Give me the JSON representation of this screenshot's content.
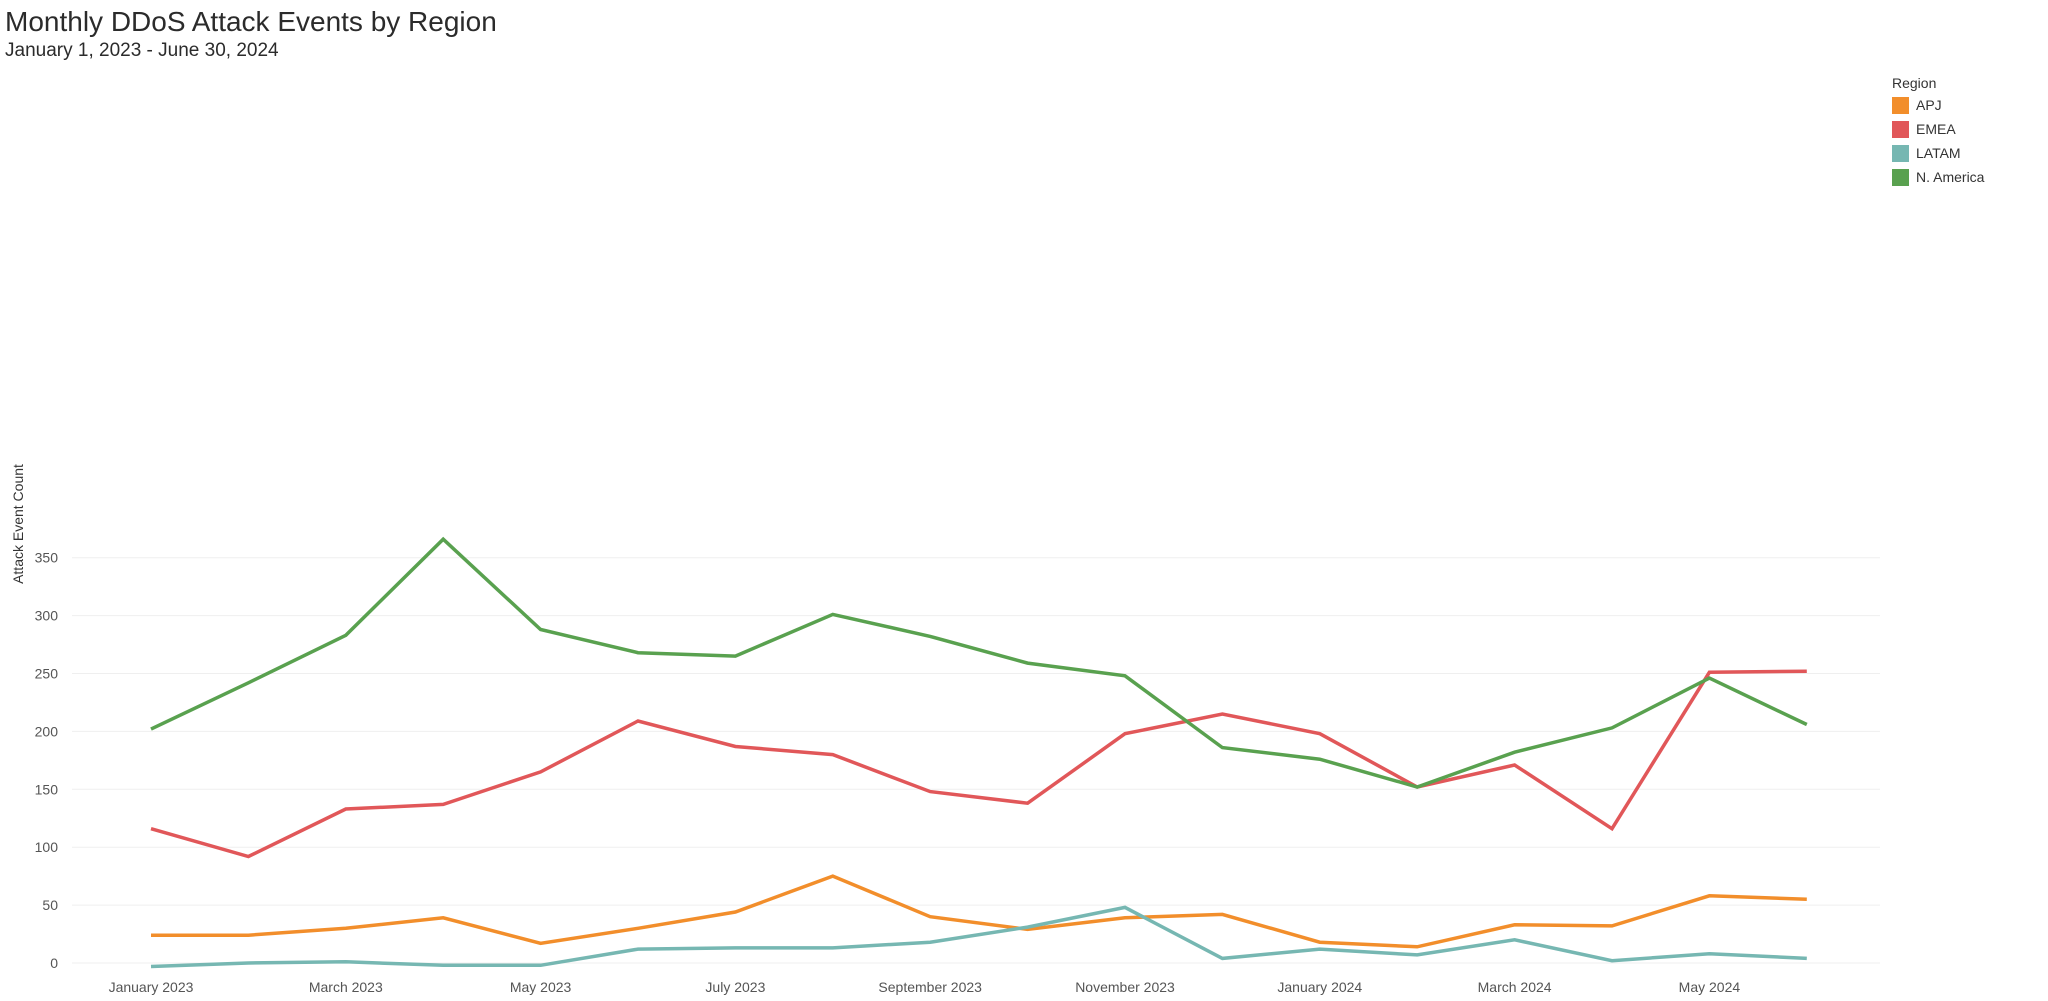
{
  "title": "Monthly DDoS Attack Events by Region",
  "subtitle": "January 1, 2023 - June 30, 2024",
  "legend": {
    "title": "Region",
    "items": [
      {
        "label": "APJ",
        "color": "#f28e2b"
      },
      {
        "label": "EMEA",
        "color": "#e15759"
      },
      {
        "label": "LATAM",
        "color": "#76b7b2"
      },
      {
        "label": "N. America",
        "color": "#59a14f"
      }
    ]
  },
  "chart_data": {
    "type": "line",
    "title": "Monthly DDoS Attack Events by Region",
    "subtitle": "January 1, 2023 - June 30, 2024",
    "xlabel": "",
    "ylabel": "Attack Event Count",
    "x": [
      "2023-01",
      "2023-02",
      "2023-03",
      "2023-04",
      "2023-05",
      "2023-06",
      "2023-07",
      "2023-08",
      "2023-09",
      "2023-10",
      "2023-11",
      "2023-12",
      "2024-01",
      "2024-02",
      "2024-03",
      "2024-04",
      "2024-05",
      "2024-06"
    ],
    "x_tick_labels": [
      {
        "x": "2023-01",
        "label": "January 2023"
      },
      {
        "x": "2023-03",
        "label": "March 2023"
      },
      {
        "x": "2023-05",
        "label": "May 2023"
      },
      {
        "x": "2023-07",
        "label": "July 2023"
      },
      {
        "x": "2023-09",
        "label": "September 2023"
      },
      {
        "x": "2023-11",
        "label": "November 2023"
      },
      {
        "x": "2024-01",
        "label": "January 2024"
      },
      {
        "x": "2024-03",
        "label": "March 2024"
      },
      {
        "x": "2024-05",
        "label": "May 2024"
      }
    ],
    "y_ticks": [
      0,
      50,
      100,
      150,
      200,
      250,
      300,
      350
    ],
    "ylim": [
      -3,
      390
    ],
    "grid": true,
    "legend_position": "top-right",
    "series": [
      {
        "name": "APJ",
        "color": "#f28e2b",
        "values": [
          24,
          24,
          30,
          39,
          17,
          30,
          44,
          75,
          40,
          29,
          39,
          42,
          18,
          14,
          33,
          32,
          58,
          55
        ]
      },
      {
        "name": "EMEA",
        "color": "#e15759",
        "values": [
          116,
          92,
          133,
          137,
          165,
          209,
          187,
          180,
          148,
          138,
          198,
          215,
          198,
          152,
          171,
          116,
          251,
          252
        ]
      },
      {
        "name": "LATAM",
        "color": "#76b7b2",
        "values": [
          -3,
          0,
          1,
          -2,
          -2,
          12,
          13,
          13,
          18,
          31,
          48,
          4,
          12,
          7,
          20,
          2,
          8,
          4
        ]
      },
      {
        "name": "N. America",
        "color": "#59a14f",
        "values": [
          202,
          242,
          283,
          366,
          288,
          268,
          265,
          301,
          282,
          259,
          248,
          186,
          176,
          152,
          182,
          203,
          246,
          206
        ]
      }
    ]
  }
}
